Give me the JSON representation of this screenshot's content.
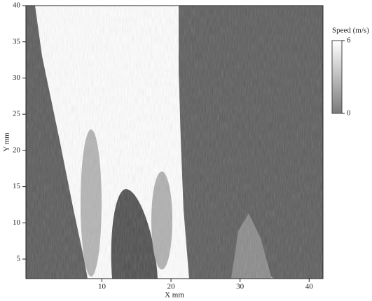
{
  "chart_data": {
    "type": "contour",
    "x_label": "X mm",
    "y_label": "Y mm",
    "xlim": [
      -1,
      42
    ],
    "xticks": [
      10,
      20,
      30,
      40
    ],
    "ylim": [
      2.3,
      40
    ],
    "yticks": [
      5,
      10,
      15,
      20,
      25,
      30,
      35,
      40
    ],
    "colorbar": {
      "title": "Speed (m/s)",
      "clim": [
        0,
        6
      ],
      "ticks": [
        0,
        6
      ],
      "colors": [
        "#7a7a7a",
        "#ffffff"
      ]
    }
  }
}
